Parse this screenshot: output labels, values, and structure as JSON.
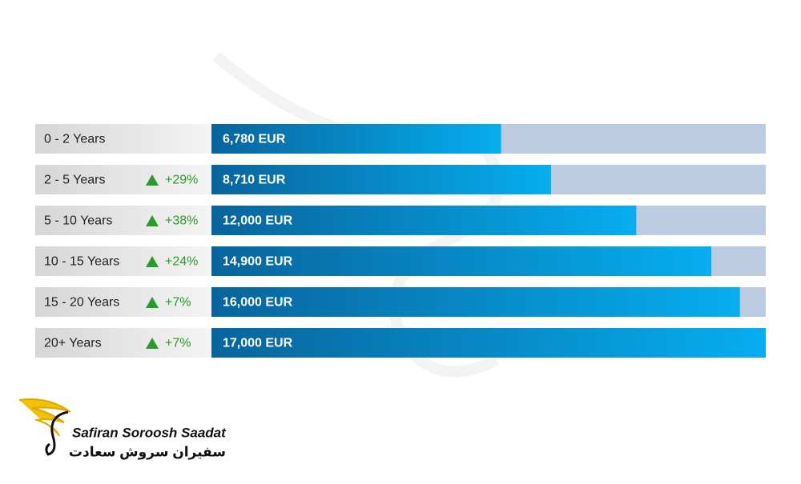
{
  "chart_data": {
    "type": "hbar",
    "categories": [
      "0 - 2 Years",
      "2 - 5 Years",
      "5 - 10 Years",
      "10 - 15 Years",
      "15 - 20 Years",
      "20+ Years"
    ],
    "values": [
      6780,
      8710,
      12000,
      14900,
      16000,
      17000
    ],
    "value_labels": [
      "6,780 EUR",
      "8,710 EUR",
      "12,000 EUR",
      "14,900 EUR",
      "16,000 EUR",
      "17,000 EUR"
    ],
    "change_labels": [
      null,
      "+29%",
      "+38%",
      "+24%",
      "+7%",
      "+7%"
    ],
    "xlim": [
      -4400,
      17000
    ],
    "color": "#0a9ad8",
    "track_color": "#bccbe2",
    "change_color": "#2a9a2a"
  },
  "logo": {
    "name": "Safiran Soroosh Saadat",
    "name_fa": "سفیران سروش سعادت"
  }
}
